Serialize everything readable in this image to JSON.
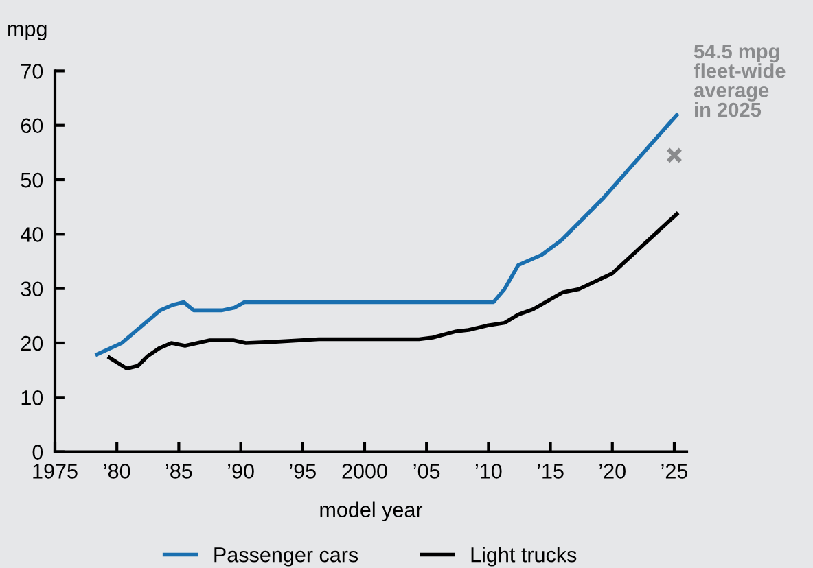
{
  "chart_data": {
    "type": "line",
    "ylabel": "mpg",
    "xlabel": "model year",
    "xlim": [
      1975,
      2026
    ],
    "ylim": [
      0,
      70
    ],
    "xticks": [
      1975,
      {
        "value": 1980,
        "label": "’80"
      },
      {
        "value": 1985,
        "label": "’85"
      },
      {
        "value": 1990,
        "label": "’90"
      },
      {
        "value": 1995,
        "label": "’95"
      },
      2000,
      {
        "value": 2005,
        "label": "’05"
      },
      {
        "value": 2010,
        "label": "’10"
      },
      {
        "value": 2015,
        "label": "’15"
      },
      {
        "value": 2020,
        "label": "’20"
      },
      {
        "value": 2025,
        "label": "’25"
      }
    ],
    "yticks": [
      0,
      10,
      20,
      30,
      40,
      50,
      60,
      70
    ],
    "grid": false,
    "legend": "bottom",
    "marker": "none",
    "line_style": "solid",
    "series": [
      {
        "name": "Passenger cars",
        "color": "#1a6faf",
        "x": [
          1978.4,
          1980.4,
          1983.5,
          1984.5,
          1985.4,
          1986.2,
          1988.5,
          1989.5,
          1990.3,
          2010.4,
          2011.3,
          2012.4,
          2014.3,
          2015.9,
          2019.3,
          2025.2
        ],
        "values": [
          17.9,
          20,
          26,
          27,
          27.5,
          26,
          26,
          26.5,
          27.5,
          27.5,
          29.9,
          34.3,
          36.2,
          38.9,
          46.7,
          61.9
        ]
      },
      {
        "name": "Light trucks",
        "color": "#000000",
        "x": [
          1979.4,
          1980.8,
          1981.7,
          1982.5,
          1983.4,
          1984.4,
          1985.5,
          1987.5,
          1989.4,
          1990.4,
          1992.6,
          1996.3,
          2004.4,
          2005.5,
          2007.3,
          2008.4,
          2009.9,
          2011.3,
          2012.4,
          2013.6,
          2016,
          2017.3,
          2020,
          2025.2
        ],
        "values": [
          17.3,
          15.3,
          15.8,
          17.6,
          19,
          20,
          19.5,
          20.5,
          20.5,
          20,
          20.2,
          20.7,
          20.7,
          21,
          22.1,
          22.4,
          23.2,
          23.7,
          25.2,
          26.2,
          29.3,
          29.9,
          32.8,
          43.7
        ]
      },
      {
        "type": "scatter",
        "marker": "cross",
        "color": "#8a8b8d",
        "x": [
          2025
        ],
        "values": [
          54.5
        ]
      }
    ],
    "annotations": [
      "54.5 mpg\nfleet-wide\naverage\nin 2025"
    ]
  }
}
